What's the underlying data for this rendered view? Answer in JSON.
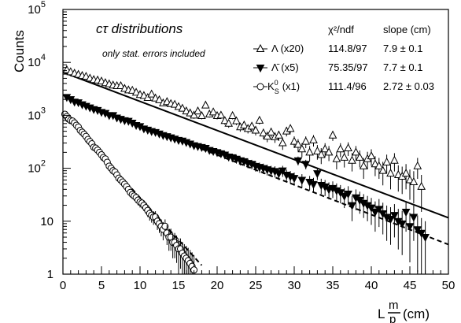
{
  "chart_data": {
    "type": "scatter",
    "title": "cτ distributions",
    "subtitle": "only stat. errors included",
    "ylabel": "Counts",
    "xlabel": "L m/p (cm)",
    "xlabel_parts": {
      "prefix": "L",
      "numerator": "m",
      "denominator": "p",
      "unit": "(cm)"
    },
    "y_scale": "log",
    "xlim": [
      0,
      50
    ],
    "ylim": [
      1,
      100000
    ],
    "x_ticks": [
      "0",
      "5",
      "10",
      "15",
      "20",
      "25",
      "30",
      "35",
      "40",
      "45",
      "50"
    ],
    "y_ticks": [
      {
        "base": "1",
        "exp": ""
      },
      {
        "base": "10",
        "exp": ""
      },
      {
        "base": "10",
        "exp": "2"
      },
      {
        "base": "10",
        "exp": "3"
      },
      {
        "base": "10",
        "exp": "4"
      },
      {
        "base": "10",
        "exp": "5"
      }
    ],
    "legend_headers": {
      "chi2": "χ²/ndf",
      "slope": "slope (cm)"
    },
    "series": [
      {
        "name": "Λ (x20)",
        "marker": "triangle-open",
        "chi2ndf": "114.8/97",
        "slope_text": "7.9 ± 0.1",
        "fit": {
          "style": "solid",
          "x_range": [
            0,
            50
          ],
          "y_at_start": 6500,
          "slope_cm": 7.9
        },
        "x": [
          0.5,
          1,
          1.5,
          2,
          2.5,
          3,
          3.5,
          4,
          4.5,
          5,
          5.5,
          6,
          6.5,
          7,
          7.5,
          8,
          8.5,
          9,
          9.5,
          10,
          10.5,
          11,
          11.5,
          12,
          12.5,
          13,
          13.5,
          14,
          14.5,
          15,
          15.5,
          16,
          16.5,
          17,
          17.5,
          18,
          18.5,
          19,
          19.5,
          20,
          20.5,
          21,
          21.5,
          22,
          22.5,
          23,
          23.5,
          24,
          24.5,
          25,
          25.5,
          26,
          26.5,
          27,
          27.5,
          28,
          28.5,
          29,
          29.5,
          30,
          30.5,
          31,
          31.5,
          32,
          32.5,
          33,
          33.5,
          34,
          34.5,
          35,
          35.5,
          36,
          36.5,
          37,
          37.5,
          38,
          38.5,
          39,
          39.5,
          40,
          40.5,
          41,
          41.5,
          42,
          42.5,
          43,
          43.5,
          44,
          44.5,
          45,
          45.5,
          46,
          46.5
        ],
        "y": [
          7200,
          6600,
          6200,
          5900,
          5600,
          5400,
          5000,
          4700,
          4600,
          4400,
          4100,
          3900,
          3700,
          3600,
          3600,
          3200,
          3000,
          2950,
          2700,
          2450,
          2350,
          2150,
          2500,
          2100,
          1950,
          1700,
          1800,
          1650,
          1600,
          1450,
          1350,
          1200,
          1100,
          1000,
          1200,
          980,
          1550,
          1050,
          1150,
          980,
          1000,
          790,
          700,
          980,
          780,
          600,
          650,
          560,
          620,
          520,
          800,
          460,
          400,
          480,
          390,
          420,
          300,
          500,
          560,
          320,
          280,
          230,
          320,
          200,
          340,
          210,
          180,
          230,
          200,
          420,
          150,
          230,
          160,
          240,
          140,
          200,
          160,
          110,
          150,
          170,
          120,
          110,
          90,
          130,
          80,
          140,
          75,
          70,
          80,
          60,
          55,
          110,
          45
        ]
      },
      {
        "name": "Λ̄ (x5)",
        "marker": "triangle-filled-down",
        "chi2ndf": "75.35/97",
        "slope_text": "7.7 ± 0.1",
        "fit": {
          "style": "dashed",
          "x_range": [
            0,
            50
          ],
          "y_at_start": 2400,
          "slope_cm": 7.7
        },
        "x": [
          0.5,
          1,
          1.5,
          2,
          2.5,
          3,
          3.5,
          4,
          4.5,
          5,
          5.5,
          6,
          6.5,
          7,
          7.5,
          8,
          8.5,
          9,
          9.5,
          10,
          10.5,
          11,
          11.5,
          12,
          12.5,
          13,
          13.5,
          14,
          14.5,
          15,
          15.5,
          16,
          16.5,
          17,
          17.5,
          18,
          18.5,
          19,
          19.5,
          20,
          20.5,
          21,
          21.5,
          22,
          22.5,
          23,
          23.5,
          24,
          24.5,
          25,
          25.5,
          26,
          26.5,
          27,
          27.5,
          28,
          28.5,
          29,
          29.5,
          30,
          30.5,
          31,
          31.5,
          32,
          32.5,
          33,
          33.5,
          34,
          34.5,
          35,
          35.5,
          36,
          36.5,
          37,
          37.5,
          38,
          38.5,
          39,
          39.5,
          40,
          40.5,
          41,
          41.5,
          42,
          42.5,
          43,
          43.5,
          44,
          44.5,
          45,
          45.5,
          46,
          46.5,
          47
        ],
        "y": [
          2200,
          2000,
          1800,
          1750,
          1600,
          1500,
          1400,
          1300,
          1250,
          1150,
          1100,
          1000,
          1000,
          900,
          850,
          800,
          780,
          720,
          650,
          620,
          560,
          530,
          500,
          480,
          450,
          420,
          400,
          380,
          360,
          340,
          330,
          310,
          290,
          270,
          260,
          250,
          240,
          220,
          210,
          200,
          190,
          180,
          165,
          160,
          150,
          140,
          135,
          125,
          120,
          110,
          105,
          100,
          95,
          90,
          88,
          80,
          90,
          75,
          70,
          65,
          140,
          60,
          120,
          55,
          50,
          80,
          48,
          45,
          40,
          42,
          38,
          35,
          30,
          33,
          20,
          28,
          25,
          22,
          20,
          18,
          15,
          17,
          14,
          12,
          11,
          13,
          10,
          9,
          15,
          8,
          12,
          7,
          6,
          5
        ]
      },
      {
        "name": "K⁰S (x1)",
        "name_base": "K",
        "name_sup": "0",
        "name_sub": "S",
        "name_suffix": "(x1)",
        "marker": "circle-open",
        "chi2ndf": "111.4/96",
        "slope_text": "2.72 ± 0.03",
        "fit": {
          "style": "dashed",
          "x_range": [
            0,
            18
          ],
          "y_at_start": 1100,
          "slope_cm": 2.72
        },
        "x": [
          0.25,
          0.5,
          0.75,
          1,
          1.25,
          1.5,
          1.75,
          2,
          2.25,
          2.5,
          2.75,
          3,
          3.25,
          3.5,
          3.75,
          4,
          4.25,
          4.5,
          4.75,
          5,
          5.25,
          5.5,
          5.75,
          6,
          6.25,
          6.5,
          6.75,
          7,
          7.25,
          7.5,
          7.75,
          8,
          8.25,
          8.5,
          8.75,
          9,
          9.25,
          9.5,
          9.75,
          10,
          10.25,
          10.5,
          10.75,
          11,
          11.25,
          11.5,
          11.75,
          12,
          12.25,
          12.5,
          12.75,
          13,
          13.25,
          13.5,
          13.75,
          14,
          14.25,
          14.5,
          14.75,
          15,
          15.25,
          15.5,
          15.75,
          16,
          16.25,
          16.5,
          16.75,
          17
        ],
        "y": [
          1050,
          950,
          850,
          800,
          780,
          720,
          650,
          600,
          520,
          480,
          440,
          400,
          350,
          320,
          290,
          250,
          240,
          220,
          200,
          180,
          160,
          150,
          130,
          110,
          100,
          90,
          85,
          75,
          65,
          60,
          55,
          50,
          45,
          40,
          35,
          32,
          30,
          28,
          25,
          23,
          22,
          20,
          18,
          16,
          14,
          13,
          12,
          12,
          10,
          9,
          8,
          7,
          8,
          6,
          5,
          5,
          4,
          4,
          3.5,
          3,
          3,
          2.5,
          2.2,
          2,
          1.8,
          1.6,
          1.4,
          1.2
        ]
      }
    ]
  }
}
